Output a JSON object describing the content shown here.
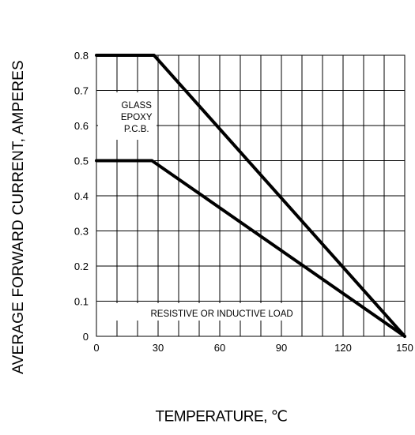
{
  "chart_data": {
    "type": "line",
    "xlabel": "TEMPERATURE, ℃",
    "ylabel": "AVERAGE FORWARD CURRENT, AMPERES",
    "xlim": [
      0,
      150
    ],
    "ylim": [
      0,
      0.8
    ],
    "xticks": [
      0,
      30,
      60,
      90,
      120,
      150
    ],
    "xtick_labels": [
      "0",
      "30",
      "60",
      "90",
      "120",
      "150"
    ],
    "yticks": [
      0,
      0.1,
      0.2,
      0.3,
      0.4,
      0.5,
      0.6,
      0.7,
      0.8
    ],
    "ytick_labels": [
      "0",
      "0.1",
      "0.2",
      "0.3",
      "0.4",
      "0.5",
      "0.6",
      "0.7",
      "0.8"
    ],
    "grid": true,
    "series": [
      {
        "values": [
          [
            0,
            0.8
          ],
          [
            28,
            0.8
          ],
          [
            150,
            0
          ]
        ]
      },
      {
        "values": [
          [
            0,
            0.5
          ],
          [
            27,
            0.5
          ],
          [
            150,
            0
          ]
        ]
      }
    ],
    "annotations": [
      {
        "lines": [
          "GLASS",
          "EPOXY",
          "P.C.B."
        ],
        "x": 19.5,
        "y": 0.625,
        "anchor": "middle"
      },
      {
        "lines": [
          "RESISTIVE OR INDUCTIVE LOAD"
        ],
        "x": 61,
        "y": 0.065,
        "anchor": "middle"
      }
    ]
  }
}
